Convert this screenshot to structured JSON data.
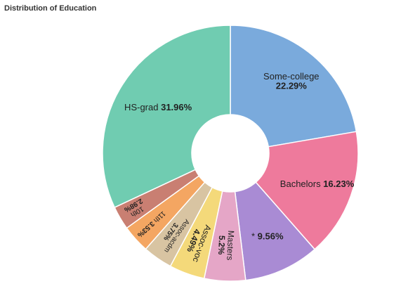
{
  "chart_data": {
    "type": "pie",
    "title": "Distribution of Education",
    "donut": true,
    "slices": [
      {
        "label": "Some-college",
        "value": 22.29,
        "color": "#7aaadc"
      },
      {
        "label": "Bachelors",
        "value": 16.23,
        "color": "#ee7a9c"
      },
      {
        "label": "*",
        "value": 9.56,
        "color": "#a98bd4"
      },
      {
        "label": "Masters",
        "value": 5.2,
        "color": "#e5a6c7"
      },
      {
        "label": "Assoc-voc",
        "value": 4.49,
        "color": "#f4d97a"
      },
      {
        "label": "Assoc-acdm",
        "value": 3.75,
        "color": "#d8c4a2"
      },
      {
        "label": "11th",
        "value": 3.53,
        "color": "#f4a662"
      },
      {
        "label": "10th",
        "value": 2.98,
        "color": "#c97f72"
      },
      {
        "label": "HS-grad",
        "value": 31.96,
        "color": "#70ccb1"
      }
    ]
  }
}
